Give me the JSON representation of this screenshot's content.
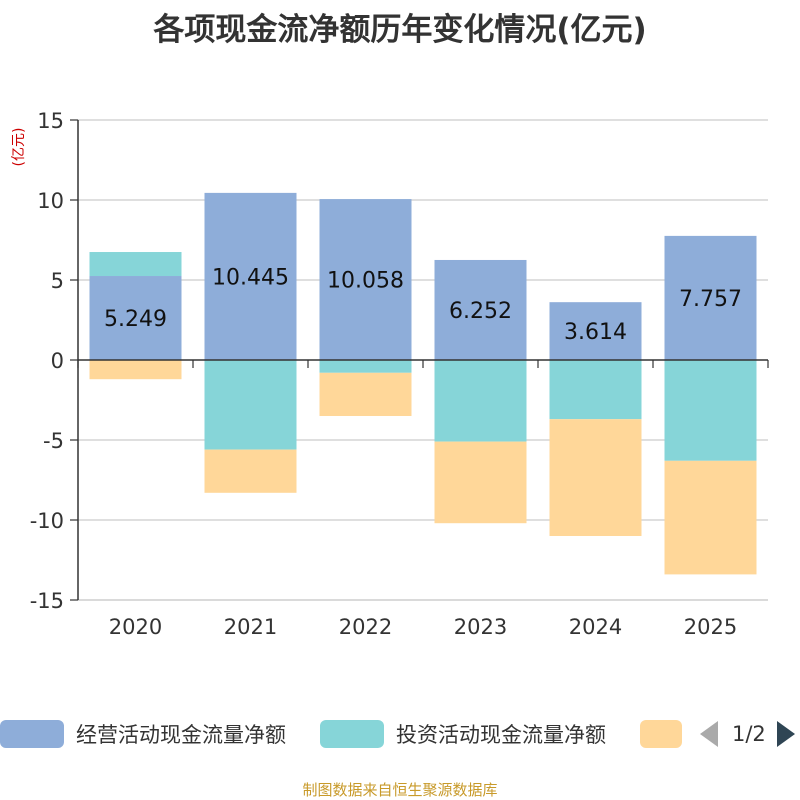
{
  "chart_data": {
    "type": "bar",
    "stacked": true,
    "title": "各项现金流净额历年变化情况(亿元)",
    "ylabel": "(亿元)",
    "xlabel": "",
    "ylim": [
      -15,
      15
    ],
    "yticks": [
      15,
      10,
      5,
      0,
      -5,
      -10,
      -15
    ],
    "categories": [
      "2020",
      "2021",
      "2022",
      "2023",
      "2024",
      "2025"
    ],
    "grid": true,
    "legend_position": "bottom",
    "series": [
      {
        "name": "经营活动现金流量净额",
        "color": "#8eadd9",
        "values": [
          5.249,
          10.445,
          10.058,
          6.252,
          3.614,
          7.757
        ],
        "labels": [
          "5.249",
          "10.445",
          "10.058",
          "6.252",
          "3.614",
          "7.757"
        ]
      },
      {
        "name": "投资活动现金流量净额",
        "color": "#86d5d8",
        "values": [
          1.5,
          -5.6,
          -0.8,
          -5.1,
          -3.7,
          -6.3
        ]
      },
      {
        "name": "",
        "color": "#ffd799",
        "values": [
          -1.2,
          -2.7,
          -2.7,
          -5.1,
          -7.3,
          -7.1
        ]
      }
    ]
  },
  "legend": {
    "items": [
      {
        "label": "经营活动现金流量净额",
        "color": "#8eadd9"
      },
      {
        "label": "投资活动现金流量净额",
        "color": "#86d5d8"
      },
      {
        "label": "",
        "color": "#ffd799"
      }
    ],
    "page_text": "1/2"
  },
  "footer": {
    "source": "制图数据来自恒生聚源数据库"
  }
}
